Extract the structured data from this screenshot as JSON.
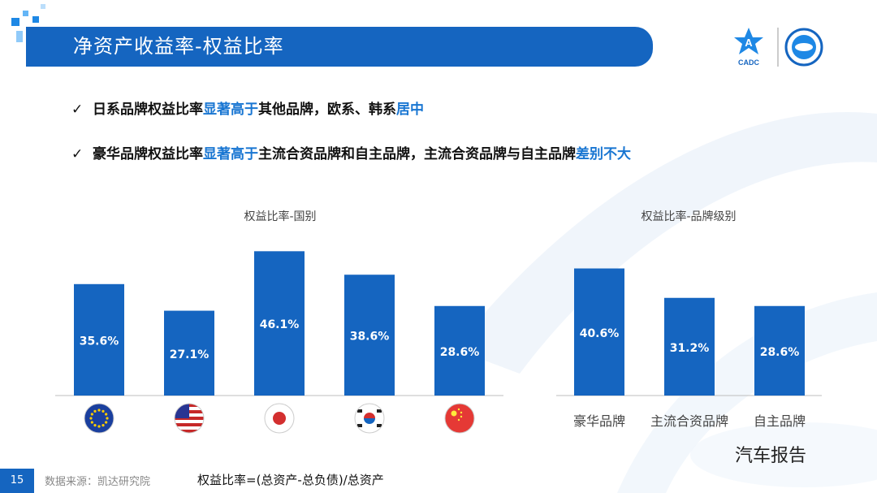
{
  "slide": {
    "title": "净资产收益率-权益比率",
    "page_number": "15",
    "source": "数据来源：凯达研究院",
    "formula": "权益比率=(总资产-总负债)/总资产",
    "logo_text": "CADC",
    "watermark": "汽车报告",
    "brand_color": "#1565c0",
    "bar_color": "#1565c0"
  },
  "bullets": [
    {
      "check": "✓",
      "parts": [
        {
          "text": "日系品牌权益比率",
          "hl": false
        },
        {
          "text": "显著高于",
          "hl": true
        },
        {
          "text": "其他品牌，欧系、韩系",
          "hl": false
        },
        {
          "text": "居中",
          "hl": true
        }
      ]
    },
    {
      "check": "✓",
      "parts": [
        {
          "text": "豪华品牌权益比率",
          "hl": false
        },
        {
          "text": "显著高于",
          "hl": true
        },
        {
          "text": "主流合资品牌和自主品牌，主流合资品牌与自主品牌",
          "hl": false
        },
        {
          "text": "差别不大",
          "hl": true
        }
      ]
    }
  ],
  "chart_data": [
    {
      "type": "bar",
      "title": "权益比率-国别",
      "categories": [
        "eu-flag-icon",
        "us-flag-icon",
        "japan-flag-icon",
        "korea-flag-icon",
        "china-flag-icon"
      ],
      "values": [
        35.6,
        27.1,
        46.1,
        38.6,
        28.6
      ],
      "labels": [
        "35.6%",
        "27.1%",
        "46.1%",
        "38.6%",
        "28.6%"
      ],
      "ylim": [
        0,
        48
      ],
      "grid": false,
      "legend": "none"
    },
    {
      "type": "bar",
      "title": "权益比率-品牌级别",
      "categories": [
        "豪华品牌",
        "主流合资品牌",
        "自主品牌"
      ],
      "values": [
        40.6,
        31.2,
        28.6
      ],
      "labels": [
        "40.6%",
        "31.2%",
        "28.6%"
      ],
      "ylim": [
        0,
        48
      ],
      "grid": false,
      "legend": "none"
    }
  ]
}
